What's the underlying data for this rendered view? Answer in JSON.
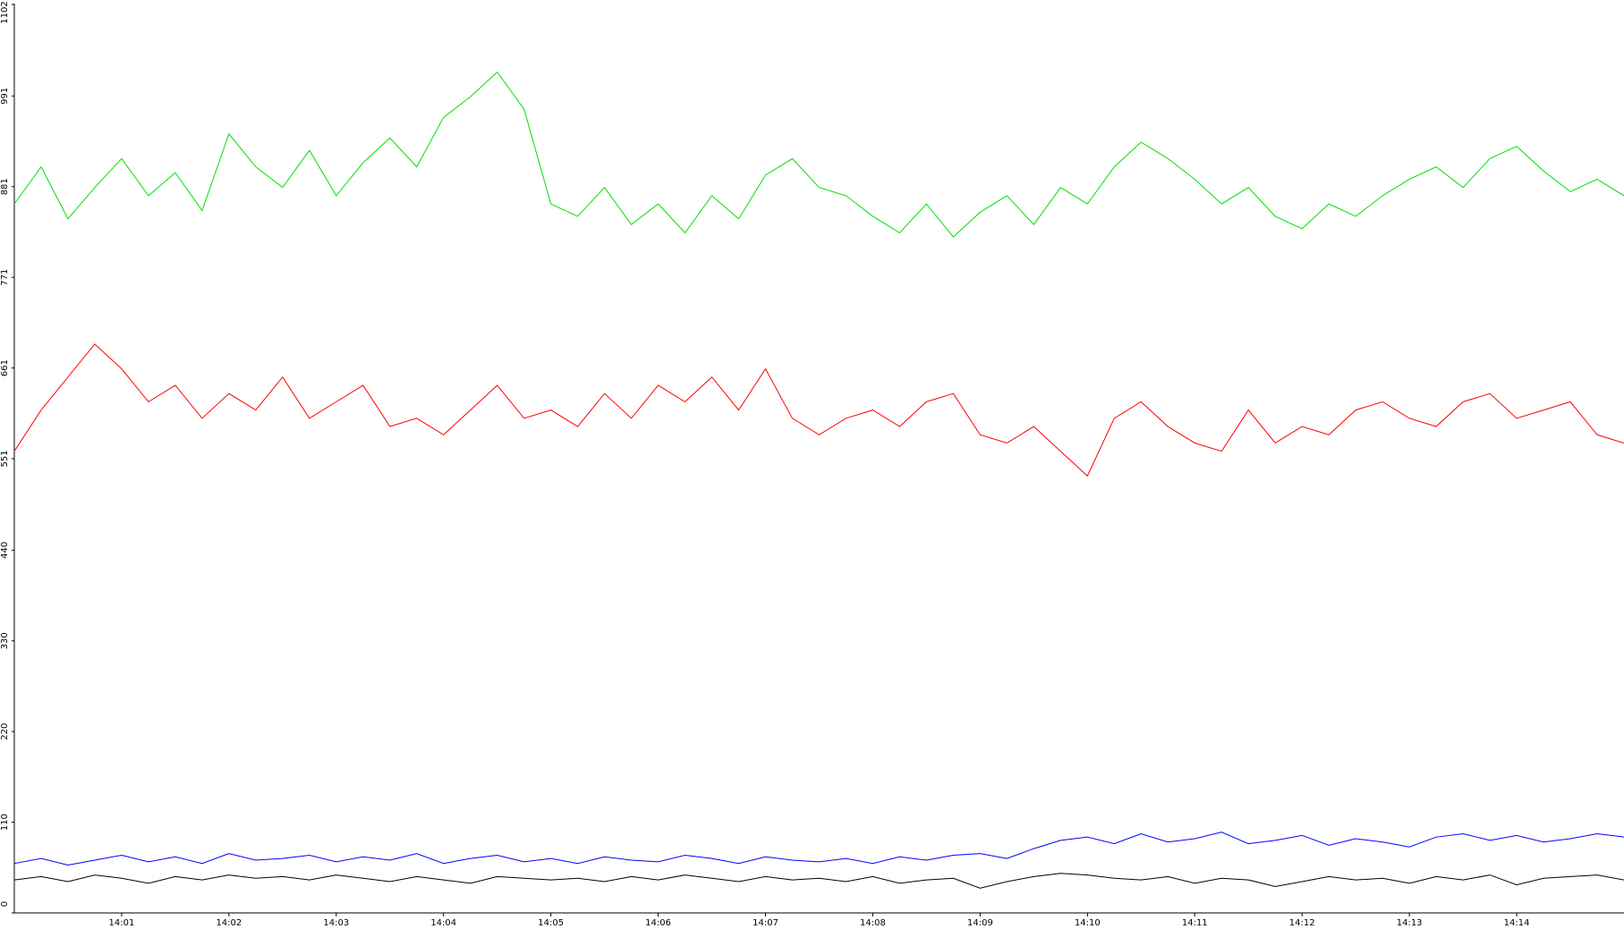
{
  "chart_data": {
    "type": "line",
    "x": [
      840,
      840.25,
      840.5,
      840.75,
      841,
      841.25,
      841.5,
      841.75,
      842,
      842.25,
      842.5,
      842.75,
      843,
      843.25,
      843.5,
      843.75,
      844,
      844.25,
      844.5,
      844.75,
      845,
      845.25,
      845.5,
      845.75,
      846,
      846.25,
      846.5,
      846.75,
      847,
      847.25,
      847.5,
      847.75,
      848,
      848.25,
      848.5,
      848.75,
      849,
      849.25,
      849.5,
      849.75,
      850,
      850.25,
      850.5,
      850.75,
      851,
      851.25,
      851.5,
      851.75,
      852,
      852.25,
      852.5,
      852.75,
      853,
      853.25,
      853.5,
      853.75,
      854,
      854.25,
      854.5,
      854.75,
      855
    ],
    "series": [
      {
        "color": "#00e000",
        "values": [
          860,
          905,
          842,
          880,
          915,
          870,
          898,
          852,
          945,
          905,
          880,
          925,
          870,
          910,
          940,
          905,
          965,
          990,
          1020,
          975,
          860,
          845,
          880,
          835,
          860,
          825,
          870,
          842,
          895,
          915,
          880,
          870,
          845,
          825,
          860,
          820,
          850,
          870,
          835,
          880,
          860,
          905,
          935,
          915,
          890,
          860,
          880,
          845,
          830,
          860,
          845,
          870,
          890,
          905,
          880,
          915,
          930,
          900,
          875,
          890,
          870
        ]
      },
      {
        "color": "#ff0000",
        "values": [
          560,
          610,
          650,
          690,
          660,
          620,
          640,
          600,
          630,
          610,
          650,
          600,
          620,
          640,
          590,
          600,
          580,
          610,
          640,
          600,
          610,
          590,
          630,
          600,
          640,
          620,
          650,
          610,
          660,
          600,
          580,
          600,
          610,
          590,
          620,
          630,
          580,
          570,
          590,
          560,
          530,
          600,
          620,
          590,
          570,
          560,
          610,
          570,
          590,
          580,
          610,
          620,
          600,
          590,
          620,
          630,
          600,
          610,
          620,
          580,
          570
        ]
      },
      {
        "color": "#0000ff",
        "values": [
          60,
          66,
          58,
          64,
          70,
          62,
          68,
          60,
          72,
          64,
          66,
          70,
          62,
          68,
          64,
          72,
          60,
          66,
          70,
          62,
          66,
          60,
          68,
          64,
          62,
          70,
          66,
          60,
          68,
          64,
          62,
          66,
          60,
          68,
          64,
          70,
          72,
          66,
          78,
          88,
          92,
          84,
          96,
          86,
          90,
          98,
          84,
          88,
          94,
          82,
          90,
          86,
          80,
          92,
          96,
          88,
          94,
          86,
          90,
          96,
          92
        ]
      },
      {
        "color": "#000000",
        "values": [
          40,
          44,
          38,
          46,
          42,
          36,
          44,
          40,
          46,
          42,
          44,
          40,
          46,
          42,
          38,
          44,
          40,
          36,
          44,
          42,
          40,
          42,
          38,
          44,
          40,
          46,
          42,
          38,
          44,
          40,
          42,
          38,
          44,
          36,
          40,
          42,
          30,
          38,
          44,
          48,
          46,
          42,
          40,
          44,
          36,
          42,
          40,
          32,
          38,
          44,
          40,
          42,
          36,
          44,
          40,
          46,
          34,
          42,
          44,
          46,
          40
        ]
      }
    ],
    "xlim": [
      840,
      855
    ],
    "xticks": [
      {
        "value": 841,
        "label": "14:01"
      },
      {
        "value": 842,
        "label": "14:02"
      },
      {
        "value": 843,
        "label": "14:03"
      },
      {
        "value": 844,
        "label": "14:04"
      },
      {
        "value": 845,
        "label": "14:05"
      },
      {
        "value": 846,
        "label": "14:06"
      },
      {
        "value": 847,
        "label": "14:07"
      },
      {
        "value": 848,
        "label": "14:08"
      },
      {
        "value": 849,
        "label": "14:09"
      },
      {
        "value": 850,
        "label": "14:10"
      },
      {
        "value": 851,
        "label": "14:11"
      },
      {
        "value": 852,
        "label": "14:12"
      },
      {
        "value": 853,
        "label": "14:13"
      },
      {
        "value": 854,
        "label": "14:14"
      }
    ],
    "ylim": [
      0,
      1102
    ],
    "yticks": [
      0,
      110,
      220,
      330,
      440,
      551,
      661,
      771,
      881,
      991,
      1102
    ]
  }
}
